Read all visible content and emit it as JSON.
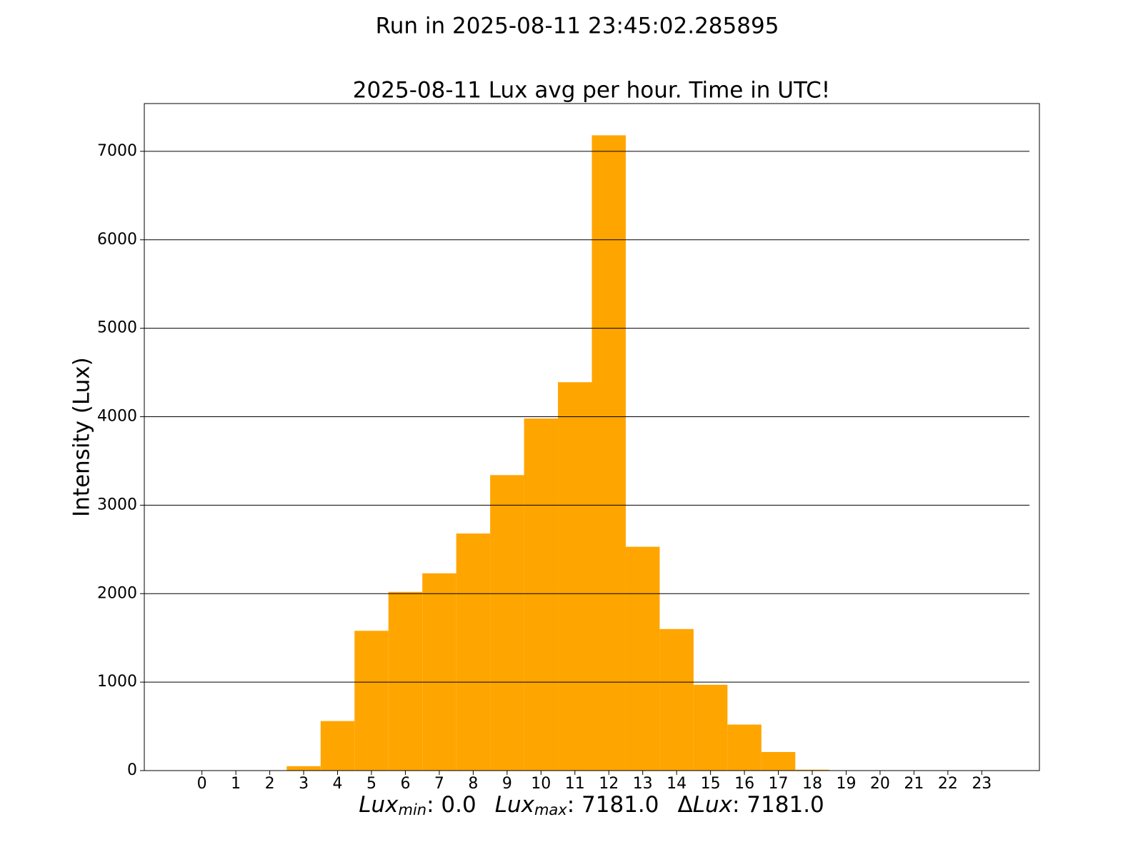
{
  "chart_data": {
    "type": "bar",
    "suptitle": "Run in 2025-08-11 23:45:02.285895",
    "title": "2025-08-11 Lux avg per hour. Time in UTC!",
    "ylabel": "Intensity (Lux)",
    "xlabel": [
      "Lux",
      "min",
      ": 0.0",
      "Lux",
      "max",
      ": 7181.0",
      "Δ",
      "Lux",
      ": 7181.0"
    ],
    "categories": [
      "0",
      "1",
      "2",
      "3",
      "4",
      "5",
      "6",
      "7",
      "8",
      "9",
      "10",
      "11",
      "12",
      "13",
      "14",
      "15",
      "16",
      "17",
      "18",
      "19",
      "20",
      "21",
      "22",
      "23"
    ],
    "values": [
      0,
      0,
      0,
      50,
      560,
      1580,
      2020,
      2230,
      2680,
      3340,
      3980,
      4390,
      7181,
      2530,
      1600,
      970,
      520,
      210,
      10,
      0,
      0,
      0,
      0,
      0
    ],
    "color": "#ffa500",
    "ylim": [
      0,
      7540
    ],
    "yticks": [
      0,
      1000,
      2000,
      3000,
      4000,
      5000,
      6000,
      7000
    ],
    "grid": true
  }
}
